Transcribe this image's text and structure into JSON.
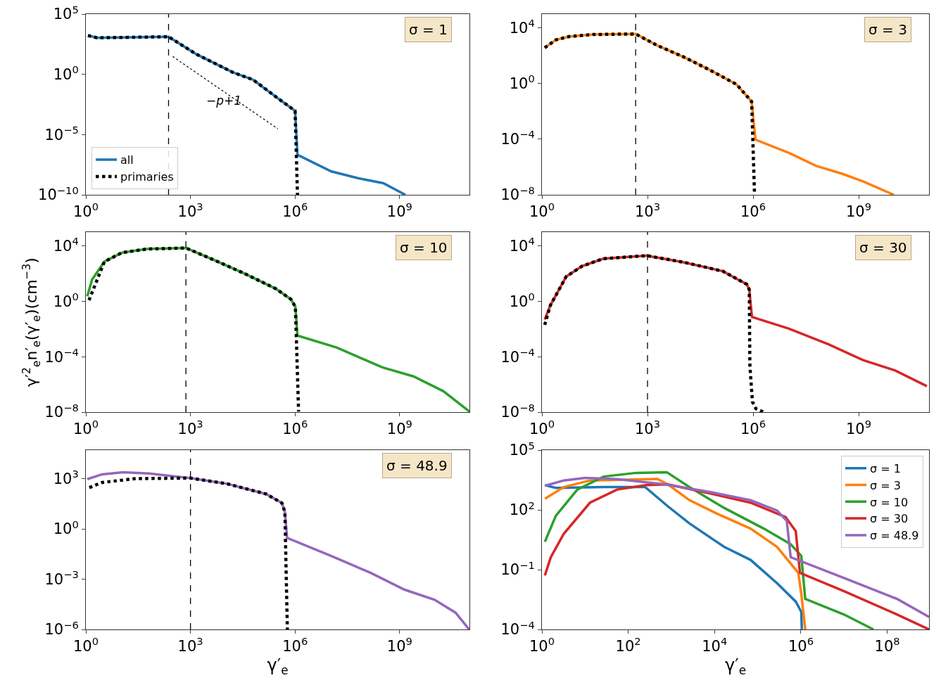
{
  "chart_data": [
    {
      "type": "line",
      "log": "xy",
      "xlim": [
        1,
        100000000000.0
      ],
      "ylim": [
        1e-10,
        100000.0
      ],
      "xticks": [
        {
          "value": 1,
          "label": "10$^{0}$"
        },
        {
          "value": 1000,
          "label": "10$^{3}$"
        },
        {
          "value": 1000000.0,
          "label": "10$^{6}$"
        },
        {
          "value": 1000000000.0,
          "label": "10$^{9}$"
        }
      ],
      "yticks": [
        {
          "value": 1e-10,
          "label": "10$^{−10}$"
        },
        {
          "value": 1e-05,
          "label": "10$^{−5}$"
        },
        {
          "value": 1,
          "label": "10$^{0}$"
        },
        {
          "value": 100000.0,
          "label": "10$^{5}$"
        }
      ],
      "legend": "bottom left",
      "series": [
        {
          "name": "all",
          "color": "#1f77b4",
          "x": [
            1.15,
            2.1,
            235,
            1450,
            16000.0,
            63000.0,
            350000.0,
            1000000.0,
            1170000.0,
            11000000.0,
            60000000.0,
            340000000.0,
            1450000000.0
          ],
          "values": [
            1660,
            1070,
            1320,
            48,
            1.5,
            0.35,
            0.0085,
            0.00093,
            2.1e-07,
            8.7e-09,
            2.5e-09,
            9.3e-10,
            1e-10
          ]
        },
        {
          "name": "primaries",
          "color": "#000000",
          "line_style": "dotted",
          "x": [
            1.15,
            2.1,
            235,
            1450,
            16000.0,
            63000.0,
            350000.0,
            1000000.0,
            1170000.0
          ],
          "values": [
            1660,
            1070,
            1320,
            48,
            1.5,
            0.35,
            0.0085,
            0.00093,
            1e-10
          ]
        },
        {
          "color": "#000000",
          "line_style": "dotted",
          "x": [
            310,
            320000.0
          ],
          "values": [
            30,
            3e-05
          ]
        }
      ],
      "ref_lines": [
        {
          "axis": "x",
          "value": 235,
          "color": "#000000",
          "line_style": "dashed"
        }
      ],
      "annotations": [
        "σ = 1",
        "−p+1"
      ]
    },
    {
      "type": "line",
      "log": "xy",
      "xlim": [
        1,
        100000000000.0
      ],
      "ylim": [
        1e-08,
        100000.0
      ],
      "xticks": [
        {
          "value": 1,
          "label": "10$^{0}$"
        },
        {
          "value": 1000,
          "label": "10$^{3}$"
        },
        {
          "value": 1000000.0,
          "label": "10$^{6}$"
        },
        {
          "value": 1000000000.0,
          "label": "10$^{9}$"
        }
      ],
      "yticks": [
        {
          "value": 1e-08,
          "label": "10$^{−8}$"
        },
        {
          "value": 0.0001,
          "label": "10$^{−4}$"
        },
        {
          "value": 1,
          "label": "10$^{0}$"
        },
        {
          "value": 10000.0,
          "label": "10$^{4}$"
        }
      ],
      "series": [
        {
          "color": "#ff7f0e",
          "x": [
            1.2,
            2.5,
            5.9,
            28,
            460,
            1800,
            10500.0,
            59000.0,
            340000.0,
            910000.0,
            1170000.0,
            10700000.0,
            62000000.0,
            350000000.0,
            1400000000.0,
            10000000000.0
          ],
          "values": [
            380,
            1400,
            2400,
            3400,
            3700,
            590,
            83,
            9.5,
            0.87,
            0.051,
            9.3e-05,
            1e-05,
            1.2e-06,
            3.2e-07,
            8.7e-08,
            1e-08
          ]
        },
        {
          "color": "#000000",
          "line_style": "dotted",
          "x": [
            1.2,
            2.5,
            5.9,
            28,
            460,
            1800,
            10500.0,
            59000.0,
            340000.0,
            910000.0,
            1100000.0
          ],
          "values": [
            380,
            1400,
            2400,
            3400,
            3700,
            590,
            83,
            9.5,
            0.87,
            0.051,
            1e-08
          ]
        }
      ],
      "ref_lines": [
        {
          "axis": "x",
          "value": 460,
          "color": "#000000",
          "line_style": "dashed"
        }
      ],
      "annotations": [
        "σ = 3"
      ]
    },
    {
      "type": "line",
      "log": "xy",
      "xlim": [
        1,
        100000000000.0
      ],
      "ylim": [
        1e-08,
        100000.0
      ],
      "ylabel": "γ′$^{2}$$_{e}$n′$_{e}$(γ′$_{e}$)(cm$^{−3}$)",
      "xticks": [
        {
          "value": 1,
          "label": "10$^{0}$"
        },
        {
          "value": 1000,
          "label": "10$^{3}$"
        },
        {
          "value": 1000000.0,
          "label": "10$^{6}$"
        },
        {
          "value": 1000000000.0,
          "label": "10$^{9}$"
        }
      ],
      "yticks": [
        {
          "value": 1e-08,
          "label": "10$^{−8}$"
        },
        {
          "value": 0.0001,
          "label": "10$^{−4}$"
        },
        {
          "value": 1,
          "label": "10$^{0}$"
        },
        {
          "value": 10000.0,
          "label": "10$^{4}$"
        }
      ],
      "series": [
        {
          "color": "#2ca02c",
          "x": [
            1.1,
            1.5,
            3.4,
            11,
            56,
            740,
            4800,
            36000.0,
            280000.0,
            760000.0,
            1020000.0,
            1170000.0,
            15500000.0,
            320000000.0,
            2500000000.0,
            18000000000.0,
            100000000000.0
          ],
          "values": [
            2.3,
            36,
            740,
            3300,
            6000,
            7100,
            950,
            100,
            8.1,
            1.4,
            0.4,
            0.0034,
            0.00046,
            1.7e-05,
            3.8e-06,
            3.2e-07,
            1.1e-08
          ]
        },
        {
          "color": "#000000",
          "line_style": "dotted",
          "x": [
            1.23,
            3.4,
            11,
            56,
            740,
            4800,
            36000.0,
            280000.0,
            760000.0,
            1020000.0,
            1260000.0
          ],
          "values": [
            1.2,
            740,
            3300,
            6000,
            7100,
            950,
            100,
            8.1,
            1.4,
            0.4,
            1.1e-08
          ]
        }
      ],
      "ref_lines": [
        {
          "axis": "x",
          "value": 740,
          "color": "#000000",
          "line_style": "dashed"
        }
      ],
      "annotations": [
        "σ = 10"
      ]
    },
    {
      "type": "line",
      "log": "xy",
      "xlim": [
        1,
        100000000000.0
      ],
      "ylim": [
        1e-08,
        100000.0
      ],
      "xticks": [
        {
          "value": 1,
          "label": "10$^{0}$"
        },
        {
          "value": 1000,
          "label": "10$^{3}$"
        },
        {
          "value": 1000000.0,
          "label": "10$^{6}$"
        },
        {
          "value": 1000000000.0,
          "label": "10$^{9}$"
        }
      ],
      "yticks": [
        {
          "value": 1e-08,
          "label": "10$^{−8}$"
        },
        {
          "value": 0.0001,
          "label": "10$^{−4}$"
        },
        {
          "value": 1,
          "label": "10$^{0}$"
        },
        {
          "value": 10000.0,
          "label": "10$^{4}$"
        }
      ],
      "series": [
        {
          "color": "#d62728",
          "x": [
            1.2,
            1.74,
            4.9,
            14,
            56,
            930,
            10200.0,
            138000.0,
            660000.0,
            780000.0,
            930000.0,
            10500000.0,
            140000000.0,
            1350000000.0,
            11000000000.0,
            87000000000.0
          ],
          "values": [
            0.048,
            0.52,
            62,
            350,
            1200,
            2000,
            680,
            150,
            17,
            7.1,
            0.074,
            0.0105,
            0.00078,
            5.6e-05,
            1e-05,
            7.4e-07
          ]
        },
        {
          "color": "#000000",
          "line_style": "dotted",
          "x": [
            1.2,
            1.74,
            4.9,
            14,
            56,
            930,
            10200.0,
            138000.0,
            660000.0,
            780000.0,
            810000.0,
            960000.0,
            1200000.0,
            2000000.0
          ],
          "values": [
            0.02,
            0.52,
            62,
            350,
            1200,
            2000,
            680,
            150,
            17,
            7.1,
            2.4e-05,
            5.5e-08,
            1.8e-08,
            1e-08
          ]
        }
      ],
      "ref_lines": [
        {
          "axis": "x",
          "value": 1000,
          "color": "#000000",
          "line_style": "dashed"
        }
      ],
      "annotations": [
        "σ = 30"
      ]
    },
    {
      "type": "line",
      "log": "xy",
      "xlim": [
        1,
        100000000000.0
      ],
      "ylim": [
        1e-06,
        50000.0
      ],
      "xlabel": "γ′$_{e}$",
      "xticks": [
        {
          "value": 1,
          "label": "10$^{0}$"
        },
        {
          "value": 1000,
          "label": "10$^{3}$"
        },
        {
          "value": 1000000.0,
          "label": "10$^{6}$"
        },
        {
          "value": 1000000000.0,
          "label": "10$^{9}$"
        }
      ],
      "yticks": [
        {
          "value": 1e-06,
          "label": "10$^{−6}$"
        },
        {
          "value": 0.001,
          "label": "10$^{−3}$"
        },
        {
          "value": 1,
          "label": "10$^{0}$"
        },
        {
          "value": 1000,
          "label": "10$^{3}$"
        }
      ],
      "series": [
        {
          "color": "#9467bd",
          "x": [
            1.1,
            2.95,
            11.7,
            65,
            980,
            11200.0,
            148000.0,
            420000.0,
            510000.0,
            590000.0,
            11000000.0,
            145000000.0,
            1350000000.0,
            10000000000.0,
            40000000000.0,
            98000000000.0
          ],
          "values": [
            930,
            1800,
            2400,
            2000,
            1070,
            490,
            120,
            35,
            10,
            0.29,
            0.024,
            0.0024,
            0.00024,
            5.9e-05,
            1e-05,
            1e-06
          ]
        },
        {
          "color": "#000000",
          "line_style": "dotted",
          "x": [
            1.26,
            2.95,
            28,
            980,
            11200.0,
            148000.0,
            420000.0,
            510000.0,
            600000.0
          ],
          "values": [
            290,
            590,
            1000,
            1070,
            490,
            120,
            35,
            10,
            1e-06
          ]
        }
      ],
      "ref_lines": [
        {
          "axis": "x",
          "value": 1000,
          "color": "#000000",
          "line_style": "dashed"
        }
      ],
      "annotations": [
        "σ = 48.9"
      ]
    },
    {
      "type": "line",
      "log": "xy",
      "xlim": [
        1,
        930000000.0
      ],
      "ylim": [
        0.0001,
        100000.0
      ],
      "xlabel": "γ′$_{e}$",
      "xticks": [
        {
          "value": 1,
          "label": "10$^{0}$"
        },
        {
          "value": 100,
          "label": "10$^{2}$"
        },
        {
          "value": 10000.0,
          "label": "10$^{4}$"
        },
        {
          "value": 1000000.0,
          "label": "10$^{6}$"
        },
        {
          "value": 100000000.0,
          "label": "10$^{8}$"
        }
      ],
      "yticks": [
        {
          "value": 0.0001,
          "label": "10$^{−4}$"
        },
        {
          "value": 0.1,
          "label": "10$^{−1}$"
        },
        {
          "value": 100,
          "label": "10$^{2}$"
        },
        {
          "value": 100000.0,
          "label": "10$^{5}$"
        }
      ],
      "legend": "top right",
      "series": [
        {
          "name": "σ = 1",
          "color": "#1f77b4",
          "x": [
            1.17,
            2.1,
            27,
            245,
            830,
            2600,
            16600.0,
            68000.0,
            280000.0,
            760000.0,
            1020000.0,
            1050000.0
          ],
          "values": [
            1740,
            1260,
            1400,
            1400,
            150,
            21,
            1.4,
            0.31,
            0.021,
            0.0025,
            0.00076,
            0.0001
          ]
        },
        {
          "name": "σ = 3",
          "color": "#ff7f0e",
          "x": [
            1.17,
            3.2,
            13,
            470,
            830,
            2600,
            10700.0,
            68000.0,
            280000.0,
            870000.0,
            1020000.0,
            1260000.0
          ],
          "values": [
            360,
            1400,
            3000,
            3600,
            1900,
            310,
            69,
            11.5,
            1.4,
            0.069,
            0.0063,
            0.0001
          ]
        },
        {
          "name": "σ = 10",
          "color": "#2ca02c",
          "x": [
            1.17,
            2.1,
            6.6,
            27,
            150,
            780,
            2600,
            16600.0,
            138000.0,
            580000.0,
            1020000.0,
            1260000.0,
            10000000.0,
            48000000.0
          ],
          "values": [
            2.5,
            51,
            1050,
            4700,
            7200,
            7800,
            1400,
            126,
            11.5,
            1.9,
            0.49,
            0.0034,
            0.00056,
            0.0001
          ]
        },
        {
          "name": "σ = 30",
          "color": "#d62728",
          "x": [
            1.17,
            1.6,
            3.2,
            13,
            55,
            260,
            830,
            8100,
            68000.0,
            440000.0,
            760000.0,
            950000.0,
            10000000.0,
            170000000.0,
            930000000.0
          ],
          "values": [
            0.051,
            0.42,
            6.3,
            230,
            1050,
            1740,
            1900,
            660,
            230,
            44,
            8.5,
            0.069,
            0.0083,
            0.00056,
            0.0001
          ]
        },
        {
          "name": "σ = 48.9",
          "color": "#9467bd",
          "x": [
            1.17,
            3.2,
            10,
            55,
            720,
            8100,
            68000.0,
            280000.0,
            470000.0,
            580000.0,
            10000000.0,
            170000000.0,
            930000000.0
          ],
          "values": [
            1620,
            3000,
            4000,
            3500,
            1900,
            780,
            310,
            93,
            28,
            0.42,
            0.038,
            0.0034,
            0.00042
          ]
        }
      ]
    }
  ]
}
